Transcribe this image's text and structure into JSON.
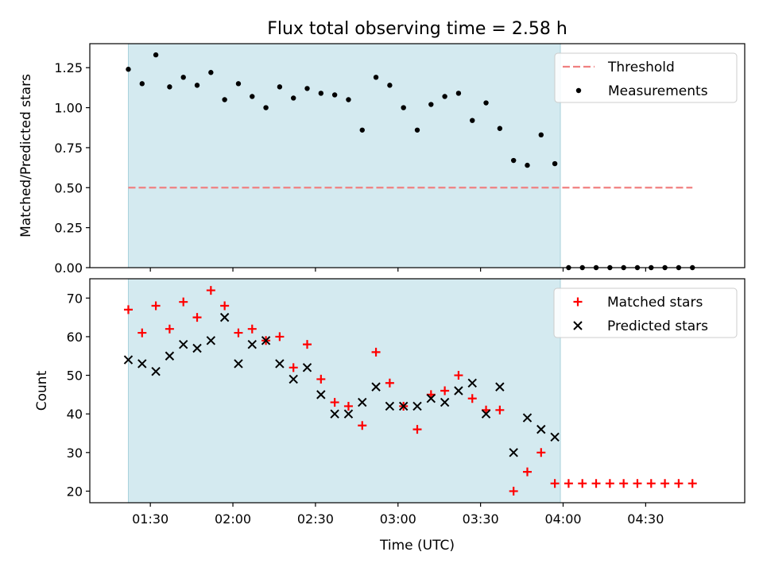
{
  "chart_data": [
    {
      "type": "scatter",
      "title": "Flux total observing time = 2.58 h",
      "xlabel": "",
      "ylabel": "Matched/Predicted stars",
      "ylim": [
        0,
        1.4
      ],
      "yticks": [
        0.0,
        0.25,
        0.5,
        0.75,
        1.0,
        1.25
      ],
      "ytick_labels": [
        "0.00",
        "0.25",
        "0.50",
        "0.75",
        "1.00",
        "1.25"
      ],
      "shaded_region": {
        "start": "01:22",
        "end": "03:59",
        "color": "#d4eaf0"
      },
      "legend": {
        "placement": "top-right",
        "entries": [
          "Threshold",
          "Measurements"
        ]
      },
      "series": [
        {
          "name": "Threshold",
          "kind": "dashed-line",
          "color": "#f08080",
          "x": [
            "01:22",
            "04:47"
          ],
          "values": [
            0.5,
            0.5
          ]
        },
        {
          "name": "Measurements",
          "kind": "dot",
          "color": "#000000",
          "x": [
            "01:22",
            "01:27",
            "01:32",
            "01:37",
            "01:42",
            "01:47",
            "01:52",
            "01:57",
            "02:02",
            "02:07",
            "02:12",
            "02:17",
            "02:22",
            "02:27",
            "02:32",
            "02:37",
            "02:42",
            "02:47",
            "02:52",
            "02:57",
            "03:02",
            "03:07",
            "03:12",
            "03:17",
            "03:22",
            "03:27",
            "03:32",
            "03:37",
            "03:42",
            "03:47",
            "03:52",
            "03:57",
            "04:02",
            "04:07",
            "04:12",
            "04:17",
            "04:22",
            "04:27",
            "04:32",
            "04:37",
            "04:42",
            "04:47"
          ],
          "values": [
            1.24,
            1.15,
            1.33,
            1.13,
            1.19,
            1.14,
            1.22,
            1.05,
            1.15,
            1.07,
            1.0,
            1.13,
            1.06,
            1.12,
            1.09,
            1.08,
            1.05,
            0.86,
            1.19,
            1.14,
            1.0,
            0.86,
            1.02,
            1.07,
            1.09,
            0.92,
            1.03,
            0.87,
            0.67,
            0.64,
            0.83,
            0.65,
            0,
            0,
            0,
            0,
            0,
            0,
            0,
            0,
            0,
            0
          ]
        }
      ]
    },
    {
      "type": "scatter",
      "title": "",
      "xlabel": "Time (UTC)",
      "ylabel": "Count",
      "ylim": [
        17,
        75
      ],
      "yticks": [
        20,
        30,
        40,
        50,
        60,
        70
      ],
      "ytick_labels": [
        "20",
        "30",
        "40",
        "50",
        "60",
        "70"
      ],
      "xticks": [
        "01:30",
        "02:00",
        "02:30",
        "03:00",
        "03:30",
        "04:00",
        "04:30"
      ],
      "shaded_region": {
        "start": "01:22",
        "end": "03:59",
        "color": "#d4eaf0"
      },
      "legend": {
        "placement": "top-right",
        "entries": [
          "Matched stars",
          "Predicted stars"
        ]
      },
      "series": [
        {
          "name": "Matched stars",
          "kind": "plus",
          "color": "#ff0000",
          "x": [
            "01:22",
            "01:27",
            "01:32",
            "01:37",
            "01:42",
            "01:47",
            "01:52",
            "01:57",
            "02:02",
            "02:07",
            "02:12",
            "02:17",
            "02:22",
            "02:27",
            "02:32",
            "02:37",
            "02:42",
            "02:47",
            "02:52",
            "02:57",
            "03:02",
            "03:07",
            "03:12",
            "03:17",
            "03:22",
            "03:27",
            "03:32",
            "03:37",
            "03:42",
            "03:47",
            "03:52",
            "03:57",
            "04:02",
            "04:07",
            "04:12",
            "04:17",
            "04:22",
            "04:27",
            "04:32",
            "04:37",
            "04:42",
            "04:47"
          ],
          "values": [
            67,
            61,
            68,
            62,
            69,
            65,
            72,
            68,
            61,
            62,
            59,
            60,
            52,
            58,
            49,
            43,
            42,
            37,
            56,
            48,
            42,
            36,
            45,
            46,
            50,
            44,
            41,
            41,
            20,
            25,
            30,
            22,
            22,
            22,
            22,
            22,
            22,
            22,
            22,
            22,
            22,
            22
          ]
        },
        {
          "name": "Predicted stars",
          "kind": "x",
          "color": "#000000",
          "x": [
            "01:22",
            "01:27",
            "01:32",
            "01:37",
            "01:42",
            "01:47",
            "01:52",
            "01:57",
            "02:02",
            "02:07",
            "02:12",
            "02:17",
            "02:22",
            "02:27",
            "02:32",
            "02:37",
            "02:42",
            "02:47",
            "02:52",
            "02:57",
            "03:02",
            "03:07",
            "03:12",
            "03:17",
            "03:22",
            "03:27",
            "03:32",
            "03:37",
            "03:42",
            "03:47",
            "03:52",
            "03:57"
          ],
          "values": [
            54,
            53,
            51,
            55,
            58,
            57,
            59,
            65,
            53,
            58,
            59,
            53,
            49,
            52,
            45,
            40,
            40,
            43,
            47,
            42,
            42,
            42,
            44,
            43,
            46,
            48,
            40,
            47,
            30,
            39,
            36,
            34
          ]
        }
      ]
    }
  ]
}
